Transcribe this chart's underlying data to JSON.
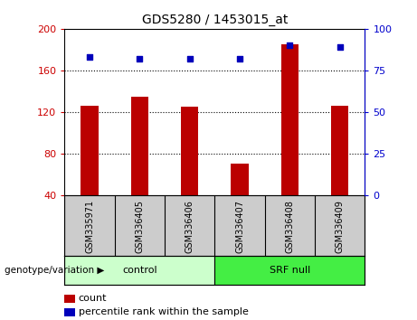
{
  "title": "GDS5280 / 1453015_at",
  "samples": [
    "GSM335971",
    "GSM336405",
    "GSM336406",
    "GSM336407",
    "GSM336408",
    "GSM336409"
  ],
  "counts": [
    126,
    135,
    125,
    70,
    185,
    126
  ],
  "percentile_ranks": [
    83,
    82,
    82,
    82,
    90,
    89
  ],
  "groups": [
    {
      "label": "control",
      "n": 3,
      "color": "#CCFFCC"
    },
    {
      "label": "SRF null",
      "n": 3,
      "color": "#44EE44"
    }
  ],
  "ylim_left": [
    40,
    200
  ],
  "ylim_right": [
    0,
    100
  ],
  "yticks_left": [
    40,
    80,
    120,
    160,
    200
  ],
  "yticks_right": [
    0,
    25,
    50,
    75,
    100
  ],
  "left_tick_color": "#CC0000",
  "right_tick_color": "#0000CC",
  "bar_color": "#BB0000",
  "dot_color": "#0000BB",
  "grid_color": "#000000",
  "label_count": "count",
  "label_percentile": "percentile rank within the sample",
  "genotype_label": "genotype/variation",
  "xtick_bg": "#CCCCCC"
}
